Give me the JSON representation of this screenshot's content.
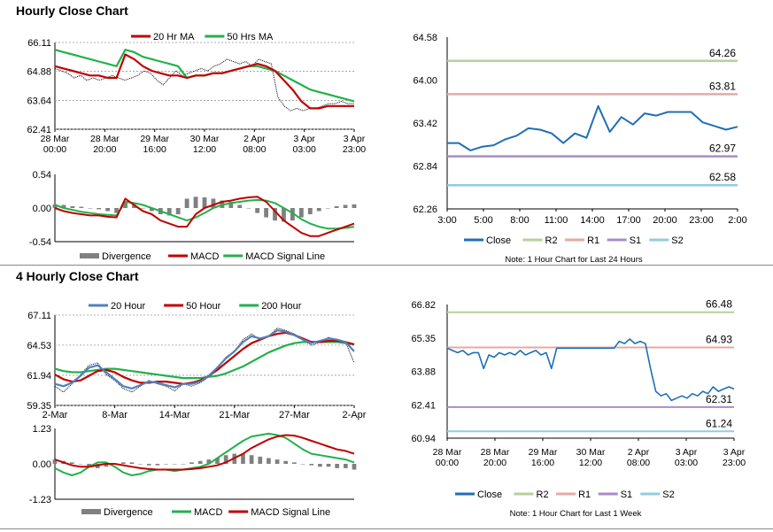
{
  "sections": [
    {
      "title": "Hourly Close Chart"
    },
    {
      "title": "4 Hourly Close Chart"
    }
  ],
  "colors": {
    "close": "#1f6fb5",
    "ma_red": "#c00000",
    "ma_green": "#22b14c",
    "ma_blue": "#4f81bd",
    "r2": "#b5d19a",
    "r1": "#e6a9a6",
    "s1": "#a48fc6",
    "s2": "#92cddc",
    "divergence": "#808080",
    "axis": "#000000",
    "price": "#000000"
  },
  "chart_data": [
    {
      "id": "h_price",
      "type": "line",
      "y_ticks": [
        "66.11",
        "64.88",
        "63.64",
        "62.41"
      ],
      "ylim": [
        62.41,
        66.11
      ],
      "x_ticks": [
        [
          "28 Mar",
          "00:00"
        ],
        [
          "28 Mar",
          "20:00"
        ],
        [
          "29 Mar",
          "16:00"
        ],
        [
          "30 Mar",
          "12:00"
        ],
        [
          "2 Apr",
          "08:00"
        ],
        [
          "3 Apr",
          "03:00"
        ],
        [
          "3 Apr",
          "23:00"
        ]
      ],
      "legend": [
        "20 Hr MA",
        "50 Hrs MA"
      ],
      "price": [
        65.0,
        64.9,
        64.8,
        64.6,
        64.7,
        64.5,
        64.6,
        64.5,
        64.6,
        64.7,
        64.6,
        64.5,
        64.6,
        64.7,
        64.9,
        64.8,
        64.5,
        64.3,
        64.6,
        64.9,
        64.7,
        64.8,
        64.9,
        65.0,
        64.9,
        65.1,
        65.2,
        65.4,
        65.3,
        65.2,
        65.3,
        65.1,
        65.4,
        65.3,
        65.2,
        63.8,
        63.4,
        63.2,
        63.3,
        63.2,
        63.3,
        63.3,
        63.4,
        63.5,
        63.5,
        63.6,
        63.5,
        63.5
      ],
      "series": [
        {
          "name": "20 Hr MA",
          "values": [
            65.1,
            65.0,
            64.9,
            64.8,
            64.7,
            64.7,
            64.6,
            64.6,
            65.6,
            65.4,
            65.1,
            64.9,
            64.8,
            64.7,
            64.7,
            64.6,
            64.7,
            64.7,
            64.8,
            64.8,
            64.9,
            65.0,
            65.1,
            65.2,
            65.1,
            64.9,
            64.5,
            64.1,
            63.6,
            63.3,
            63.3,
            63.4,
            63.4,
            63.4,
            63.4
          ]
        },
        {
          "name": "50 Hrs MA",
          "values": [
            65.8,
            65.7,
            65.6,
            65.5,
            65.4,
            65.3,
            65.2,
            65.1,
            65.8,
            65.7,
            65.5,
            65.4,
            65.3,
            65.2,
            65.1,
            64.6,
            64.7,
            64.7,
            64.8,
            64.8,
            64.9,
            65.0,
            65.1,
            65.1,
            65.0,
            64.9,
            64.7,
            64.5,
            64.3,
            64.1,
            64.0,
            63.9,
            63.8,
            63.7,
            63.6
          ]
        }
      ]
    },
    {
      "id": "h_macd",
      "type": "line",
      "y_ticks": [
        "0.54",
        "0.00",
        "-0.54"
      ],
      "ylim": [
        -0.54,
        0.54
      ],
      "legend": [
        "Divergence",
        "MACD",
        "MACD Signal Line"
      ],
      "divergence": [
        0.06,
        0.05,
        0.03,
        0.02,
        0.0,
        -0.02,
        -0.05,
        -0.08,
        0.1,
        0.05,
        0.0,
        -0.05,
        -0.1,
        -0.12,
        -0.1,
        0.15,
        0.18,
        0.17,
        0.15,
        0.12,
        0.1,
        0.05,
        0.0,
        -0.08,
        -0.15,
        -0.2,
        -0.22,
        -0.2,
        -0.15,
        -0.1,
        -0.05,
        0.0,
        0.03,
        0.05,
        0.06
      ],
      "series": [
        {
          "name": "MACD",
          "values": [
            0.0,
            -0.05,
            -0.08,
            -0.1,
            -0.12,
            -0.12,
            -0.14,
            -0.15,
            0.15,
            0.05,
            -0.05,
            -0.1,
            -0.2,
            -0.25,
            -0.3,
            -0.3,
            -0.1,
            0.0,
            0.05,
            0.1,
            0.12,
            0.15,
            0.17,
            0.18,
            0.1,
            -0.05,
            -0.2,
            -0.3,
            -0.4,
            -0.45,
            -0.45,
            -0.4,
            -0.35,
            -0.3,
            -0.25
          ]
        },
        {
          "name": "MACD Signal Line",
          "values": [
            0.05,
            0.0,
            -0.03,
            -0.06,
            -0.08,
            -0.1,
            -0.11,
            -0.12,
            0.1,
            0.08,
            0.05,
            0.0,
            -0.05,
            -0.1,
            -0.15,
            -0.2,
            -0.15,
            -0.08,
            0.0,
            0.05,
            0.08,
            0.1,
            0.12,
            0.13,
            0.12,
            0.08,
            0.0,
            -0.08,
            -0.18,
            -0.25,
            -0.3,
            -0.33,
            -0.33,
            -0.32,
            -0.3
          ]
        }
      ]
    },
    {
      "id": "h_pivot",
      "type": "line",
      "y_ticks": [
        "64.58",
        "64.00",
        "63.42",
        "62.84",
        "62.26"
      ],
      "ylim": [
        62.26,
        64.58
      ],
      "x_ticks": [
        "3:00",
        "5:00",
        "8:00",
        "11:00",
        "14:00",
        "17:00",
        "20:00",
        "23:00",
        "2:00"
      ],
      "legend": [
        "Close",
        "R2",
        "R1",
        "S1",
        "S2"
      ],
      "levels": [
        {
          "name": "R2",
          "value": 64.26,
          "label": "64.26"
        },
        {
          "name": "R1",
          "value": 63.81,
          "label": "63.81"
        },
        {
          "name": "S1",
          "value": 62.97,
          "label": "62.97"
        },
        {
          "name": "S2",
          "value": 62.58,
          "label": "62.58"
        }
      ],
      "close": [
        63.15,
        63.15,
        63.05,
        63.1,
        63.12,
        63.2,
        63.25,
        63.35,
        63.33,
        63.28,
        63.15,
        63.28,
        63.22,
        63.65,
        63.3,
        63.5,
        63.4,
        63.55,
        63.52,
        63.57,
        63.57,
        63.57,
        63.43,
        63.38,
        63.33,
        63.37
      ],
      "note": "Note: 1 Hour Chart for Last 24 Hours"
    },
    {
      "id": "h4_price",
      "type": "line",
      "y_ticks": [
        "67.11",
        "64.53",
        "61.94",
        "59.35"
      ],
      "ylim": [
        59.35,
        67.11
      ],
      "x_ticks": [
        "2-Mar",
        "8-Mar",
        "14-Mar",
        "21-Mar",
        "27-Mar",
        "2-Apr"
      ],
      "legend": [
        "20 Hour",
        "50 Hour",
        "200 Hour"
      ],
      "price": [
        61.0,
        60.5,
        61.2,
        62.0,
        62.8,
        63.0,
        62.0,
        61.5,
        60.8,
        60.5,
        61.0,
        61.5,
        61.2,
        61.0,
        60.6,
        61.2,
        61.0,
        61.3,
        61.8,
        62.5,
        63.5,
        64.0,
        65.0,
        65.5,
        65.0,
        65.3,
        66.0,
        65.8,
        65.5,
        65.0,
        64.5,
        64.8,
        65.2,
        65.0,
        64.8,
        63.0
      ],
      "series": [
        {
          "name": "20 Hour",
          "values": [
            61.2,
            61.0,
            61.3,
            61.9,
            62.6,
            62.8,
            62.2,
            61.6,
            61.0,
            60.8,
            61.1,
            61.4,
            61.3,
            61.1,
            60.9,
            61.2,
            61.2,
            61.4,
            61.9,
            62.6,
            63.4,
            64.0,
            64.8,
            65.3,
            65.1,
            65.3,
            65.8,
            65.7,
            65.4,
            65.0,
            64.7,
            64.9,
            65.1,
            65.0,
            64.8,
            64.0
          ]
        },
        {
          "name": "50 Hour",
          "values": [
            62.0,
            61.6,
            61.4,
            61.5,
            61.9,
            62.3,
            62.4,
            62.2,
            61.8,
            61.5,
            61.3,
            61.3,
            61.4,
            61.4,
            61.3,
            61.2,
            61.3,
            61.5,
            61.9,
            62.4,
            63.0,
            63.6,
            64.2,
            64.7,
            65.0,
            65.3,
            65.5,
            65.6,
            65.4,
            65.1,
            64.8,
            64.8,
            64.9,
            64.9,
            64.8,
            64.6
          ]
        },
        {
          "name": "200 Hour",
          "values": [
            62.5,
            62.3,
            62.2,
            62.2,
            62.3,
            62.4,
            62.5,
            62.5,
            62.4,
            62.3,
            62.2,
            62.1,
            62.0,
            61.9,
            61.8,
            61.7,
            61.7,
            61.7,
            61.8,
            61.9,
            62.1,
            62.4,
            62.7,
            63.1,
            63.5,
            63.9,
            64.2,
            64.5,
            64.7,
            64.8,
            64.8,
            64.8,
            64.8,
            64.8,
            64.7,
            64.6
          ]
        }
      ]
    },
    {
      "id": "h4_macd",
      "type": "line",
      "y_ticks": [
        "1.23",
        "0.00",
        "-1.23"
      ],
      "ylim": [
        -1.23,
        1.23
      ],
      "legend": [
        "Divergence",
        "MACD",
        "MACD Signal Line"
      ],
      "divergence": [
        0.15,
        0.1,
        0.05,
        0.0,
        -0.1,
        -0.15,
        -0.1,
        0.0,
        0.05,
        0.05,
        0.0,
        -0.05,
        -0.05,
        0.0,
        0.0,
        0.0,
        0.05,
        0.1,
        0.15,
        0.2,
        0.3,
        0.35,
        0.35,
        0.3,
        0.25,
        0.2,
        0.15,
        0.1,
        0.05,
        0.0,
        -0.05,
        -0.1,
        -0.1,
        -0.15,
        -0.15,
        -0.2
      ],
      "series": [
        {
          "name": "MACD",
          "values": [
            -0.15,
            -0.3,
            -0.4,
            -0.3,
            -0.1,
            0.05,
            0.05,
            -0.1,
            -0.3,
            -0.4,
            -0.35,
            -0.25,
            -0.2,
            -0.2,
            -0.25,
            -0.2,
            -0.15,
            -0.1,
            0.0,
            0.2,
            0.4,
            0.6,
            0.8,
            0.95,
            1.0,
            1.05,
            1.0,
            0.9,
            0.7,
            0.5,
            0.35,
            0.3,
            0.25,
            0.2,
            0.15,
            0.05
          ]
        },
        {
          "name": "MACD Signal Line",
          "values": [
            0.15,
            0.05,
            -0.05,
            -0.1,
            -0.1,
            -0.05,
            0.0,
            0.0,
            -0.05,
            -0.1,
            -0.15,
            -0.18,
            -0.2,
            -0.2,
            -0.2,
            -0.2,
            -0.18,
            -0.15,
            -0.1,
            -0.05,
            0.05,
            0.2,
            0.35,
            0.55,
            0.7,
            0.85,
            0.95,
            1.0,
            0.98,
            0.9,
            0.8,
            0.7,
            0.6,
            0.5,
            0.45,
            0.35
          ]
        }
      ]
    },
    {
      "id": "h4_pivot",
      "type": "line",
      "y_ticks": [
        "66.82",
        "65.35",
        "63.88",
        "62.41",
        "60.94"
      ],
      "ylim": [
        60.94,
        66.82
      ],
      "x_ticks": [
        [
          "28 Mar",
          "00:00"
        ],
        [
          "28 Mar",
          "20:00"
        ],
        [
          "29 Mar",
          "16:00"
        ],
        [
          "30 Mar",
          "12:00"
        ],
        [
          "2 Apr",
          "08:00"
        ],
        [
          "3 Apr",
          "03:00"
        ],
        [
          "3 Apr",
          "23:00"
        ]
      ],
      "legend": [
        "Close",
        "R2",
        "R1",
        "S1",
        "S2"
      ],
      "levels": [
        {
          "name": "R2",
          "value": 66.48,
          "label": "66.48"
        },
        {
          "name": "R1",
          "value": 64.93,
          "label": "64.93"
        },
        {
          "name": "S1",
          "value": 62.31,
          "label": "62.31"
        },
        {
          "name": "S2",
          "value": 61.24,
          "label": "61.24"
        }
      ],
      "close": [
        64.9,
        64.8,
        64.7,
        64.8,
        64.6,
        64.7,
        64.7,
        64.0,
        64.6,
        64.5,
        64.7,
        64.6,
        64.7,
        64.6,
        64.8,
        64.6,
        64.7,
        64.8,
        64.6,
        64.7,
        64.0,
        64.9,
        64.9,
        64.9,
        64.9,
        64.9,
        64.9,
        64.9,
        64.9,
        64.9,
        64.9,
        64.9,
        64.9,
        65.2,
        65.1,
        65.3,
        65.1,
        65.2,
        65.1,
        64.0,
        63.0,
        62.8,
        62.9,
        62.6,
        62.7,
        62.8,
        62.7,
        62.9,
        62.8,
        63.0,
        62.9,
        63.2,
        63.0,
        63.1,
        63.2,
        63.1
      ],
      "note": "Note: 1 Hour Chart for Last 1 Week"
    }
  ]
}
